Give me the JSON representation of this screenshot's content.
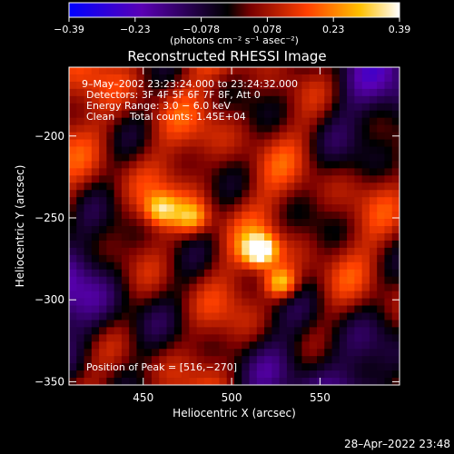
{
  "chart_data": {
    "type": "heatmap",
    "title": "Reconstructed RHESSI Image",
    "xlabel": "Heliocentric X (arcsec)",
    "ylabel": "Heliocentric Y (arcsec)",
    "xlim": [
      408,
      595
    ],
    "ylim": [
      -352,
      -158
    ],
    "x_ticks": [
      450,
      500,
      550
    ],
    "y_ticks": [
      -200,
      -250,
      -300,
      -350
    ],
    "colorbar": {
      "label": "(photons cm⁻² s⁻¹ asec⁻²)",
      "range": [
        -0.39,
        0.39
      ],
      "ticks": [
        "−0.39",
        "−0.23",
        "−0.078",
        "0.078",
        "0.23",
        "0.39"
      ],
      "colormap": [
        "#0000ff",
        "#5a00b4",
        "#000000",
        "#7a0000",
        "#ff4000",
        "#ffc000",
        "#ffffff"
      ]
    },
    "annotations": {
      "time": "9–May–2002 23:23:24.000 to 23:24:32.000",
      "detectors": "Detectors: 3F 4F 5F 6F 7F 8F, Att 0",
      "energy": "Energy Range: 3.0 − 6.0 keV",
      "method": "Clean",
      "counts": "Total counts: 1.45E+04",
      "peak": "Position of Peak = [516,−270]"
    },
    "sources": [
      {
        "x": 516,
        "y": -270,
        "peak": 0.39
      },
      {
        "x": 528,
        "y": -290,
        "peak": 0.3
      },
      {
        "x": 460,
        "y": -245,
        "peak": 0.24
      },
      {
        "x": 478,
        "y": -250,
        "peak": 0.2
      }
    ]
  },
  "footer": {
    "timestamp": "28–Apr–2022 23:48"
  }
}
